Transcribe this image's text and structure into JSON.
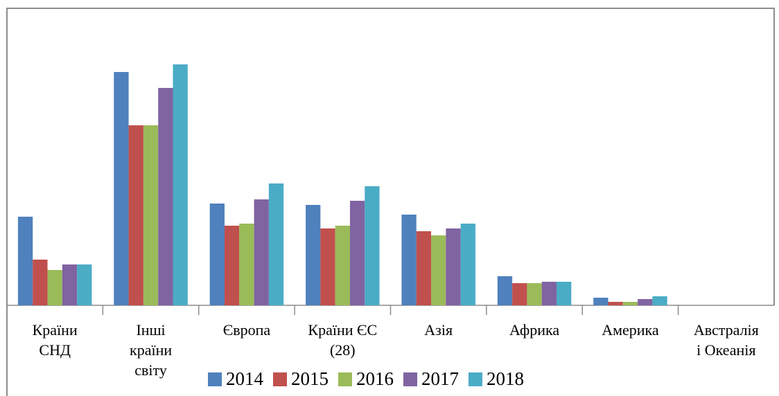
{
  "chart_data": {
    "type": "bar",
    "categories": [
      "Країни\nСНД",
      "Іншi\nкраїни\nсвіту",
      "Європа",
      "Країни ЄС\n(28)",
      "Азія",
      "Африка",
      "Америка",
      "Австралія\nі Океанія"
    ],
    "series": [
      {
        "name": "2014",
        "color": "#4f81bd",
        "values": [
          128,
          337,
          147,
          145,
          131,
          42,
          11,
          0
        ]
      },
      {
        "name": "2015",
        "color": "#c0504d",
        "values": [
          66,
          260,
          115,
          111,
          107,
          32,
          5,
          0
        ]
      },
      {
        "name": "2016",
        "color": "#9bbb59",
        "values": [
          51,
          260,
          118,
          115,
          101,
          32,
          5,
          0
        ]
      },
      {
        "name": "2017",
        "color": "#8064a2",
        "values": [
          59,
          314,
          153,
          151,
          111,
          34,
          9,
          0
        ]
      },
      {
        "name": "2018",
        "color": "#4bacc6",
        "values": [
          59,
          348,
          176,
          172,
          118,
          34,
          13,
          0
        ]
      }
    ],
    "ylim": [
      0,
      429
    ]
  }
}
